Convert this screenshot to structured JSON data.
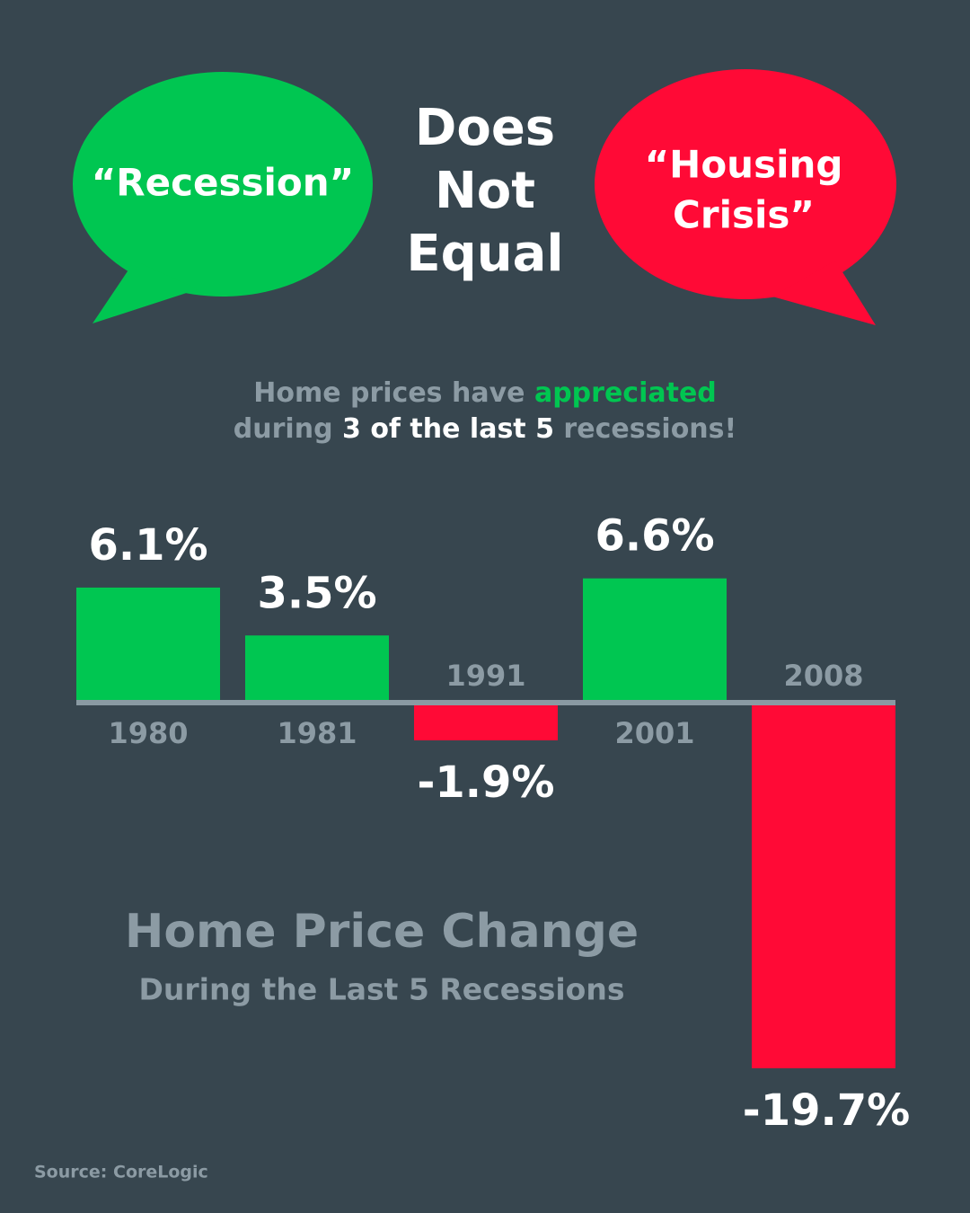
{
  "heading_lines": [
    "Does",
    "Not",
    "Equal"
  ],
  "left_bubble": {
    "text": "“Recession”",
    "color": "#00c651"
  },
  "right_bubble": {
    "lines": [
      "“Housing",
      "Crisis”"
    ],
    "color": "#ff0a36"
  },
  "intro": {
    "line1": [
      "Home prices have",
      "appreciated"
    ],
    "line2": [
      "during",
      "3 of the last 5",
      "recessions!"
    ]
  },
  "chart_data": {
    "type": "bar",
    "title": "Home Price Change",
    "subtitle": "During the Last 5 Recessions",
    "categories": [
      "1980",
      "1981",
      "1991",
      "2001",
      "2008"
    ],
    "values": [
      6.1,
      3.5,
      -1.9,
      6.6,
      -19.7
    ],
    "value_labels": [
      "6.1%",
      "3.5%",
      "-1.9%",
      "6.6%",
      "-19.7%"
    ],
    "colors": [
      "#00c651",
      "#00c651",
      "#ff0a36",
      "#00c651",
      "#ff0a36"
    ],
    "source": "Source: CoreLogic"
  }
}
